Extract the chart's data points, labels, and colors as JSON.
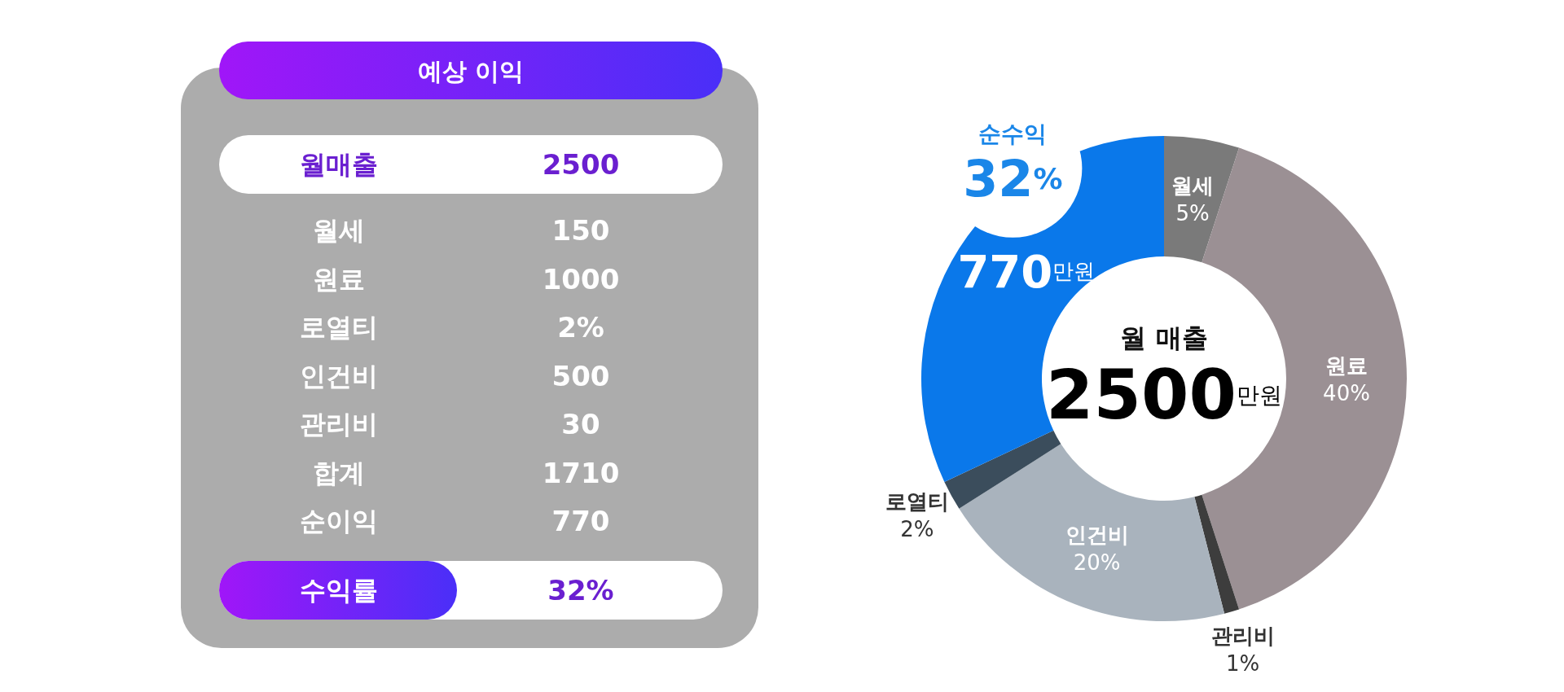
{
  "chart_data": [
    {
      "type": "other",
      "title": "예상 이익",
      "categories": [
        "월매출",
        "월세",
        "원료",
        "로열티",
        "인건비",
        "관리비",
        "합계",
        "순이익",
        "수익률"
      ],
      "value_labels": [
        "2500",
        "150",
        "1000",
        "2%",
        "500",
        "30",
        "1710",
        "770",
        "32%"
      ]
    },
    {
      "type": "donut",
      "categories": [
        "월세",
        "원료",
        "관리비",
        "인건비",
        "로열티",
        "순수익"
      ],
      "values": [
        5,
        40,
        1,
        20,
        2,
        32
      ],
      "colors": [
        "#7a7a7a",
        "#9b9094",
        "#3d3d3d",
        "#a9b3bd",
        "#3b4d5c",
        "#0a78ea"
      ],
      "value_labels": [
        "5%",
        "40%",
        "1%",
        "20%",
        "2%",
        "32%"
      ],
      "annotations": [
        "770만원",
        "월 매출",
        "2500만원"
      ]
    }
  ]
}
